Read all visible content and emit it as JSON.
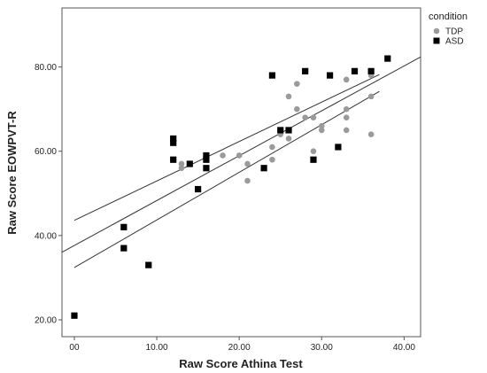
{
  "chart_data": {
    "type": "scatter",
    "title": "",
    "xlabel": "Raw Score Athina Test",
    "ylabel": "Raw Score EOWPVT-R",
    "xlim": [
      -1.5,
      42
    ],
    "ylim": [
      16,
      94
    ],
    "x_ticks": [
      0,
      10,
      20,
      30,
      40
    ],
    "x_tick_labels": [
      "00",
      "10.00",
      "20.00",
      "30.00",
      "40.00"
    ],
    "y_ticks": [
      20,
      40,
      60,
      80
    ],
    "y_tick_labels": [
      "20.00",
      "40.00",
      "60.00",
      "80.00"
    ],
    "grid": false,
    "legend": {
      "title": "condition",
      "placement": "top-right-outside",
      "entries": [
        {
          "label": "TDP",
          "marker": "circle",
          "color": "#9a9a9a"
        },
        {
          "label": "ASD",
          "marker": "square",
          "color": "#000000"
        }
      ]
    },
    "series": [
      {
        "name": "TDP",
        "marker": "circle",
        "color": "#9a9a9a",
        "points": [
          [
            13,
            57
          ],
          [
            13,
            56
          ],
          [
            16,
            58
          ],
          [
            18,
            59
          ],
          [
            20,
            59
          ],
          [
            21,
            57
          ],
          [
            21,
            53
          ],
          [
            24,
            61
          ],
          [
            24,
            58
          ],
          [
            25,
            64
          ],
          [
            26,
            63
          ],
          [
            26,
            73
          ],
          [
            27,
            70
          ],
          [
            27,
            76
          ],
          [
            28,
            68
          ],
          [
            29,
            60
          ],
          [
            29,
            68
          ],
          [
            30,
            65
          ],
          [
            30,
            66
          ],
          [
            33,
            77
          ],
          [
            33,
            70
          ],
          [
            33,
            68
          ],
          [
            33,
            65
          ],
          [
            36,
            78
          ],
          [
            36,
            73
          ],
          [
            36,
            64
          ]
        ]
      },
      {
        "name": "ASD",
        "marker": "square",
        "color": "#000000",
        "points": [
          [
            0,
            21
          ],
          [
            6,
            42
          ],
          [
            6,
            37
          ],
          [
            9,
            33
          ],
          [
            12,
            63
          ],
          [
            12,
            62
          ],
          [
            12,
            58
          ],
          [
            14,
            57
          ],
          [
            15,
            51
          ],
          [
            16,
            59
          ],
          [
            16,
            58
          ],
          [
            16,
            56
          ],
          [
            23,
            56
          ],
          [
            24,
            78
          ],
          [
            25,
            65
          ],
          [
            26,
            65
          ],
          [
            28,
            79
          ],
          [
            29,
            58
          ],
          [
            31,
            78
          ],
          [
            32,
            61
          ],
          [
            34,
            79
          ],
          [
            36,
            79
          ],
          [
            38,
            82
          ]
        ]
      }
    ],
    "fit_lines": [
      {
        "kind": "regression",
        "color": "#333333",
        "x": [
          -1.5,
          42
        ],
        "y": [
          36.05,
          82.38
        ]
      },
      {
        "kind": "ci_upper",
        "color": "#333333",
        "x": [
          0,
          37
        ],
        "y": [
          43.6,
          78.2
        ]
      },
      {
        "kind": "ci_lower",
        "color": "#333333",
        "x": [
          0,
          37
        ],
        "y": [
          32.4,
          74.2
        ]
      }
    ]
  }
}
